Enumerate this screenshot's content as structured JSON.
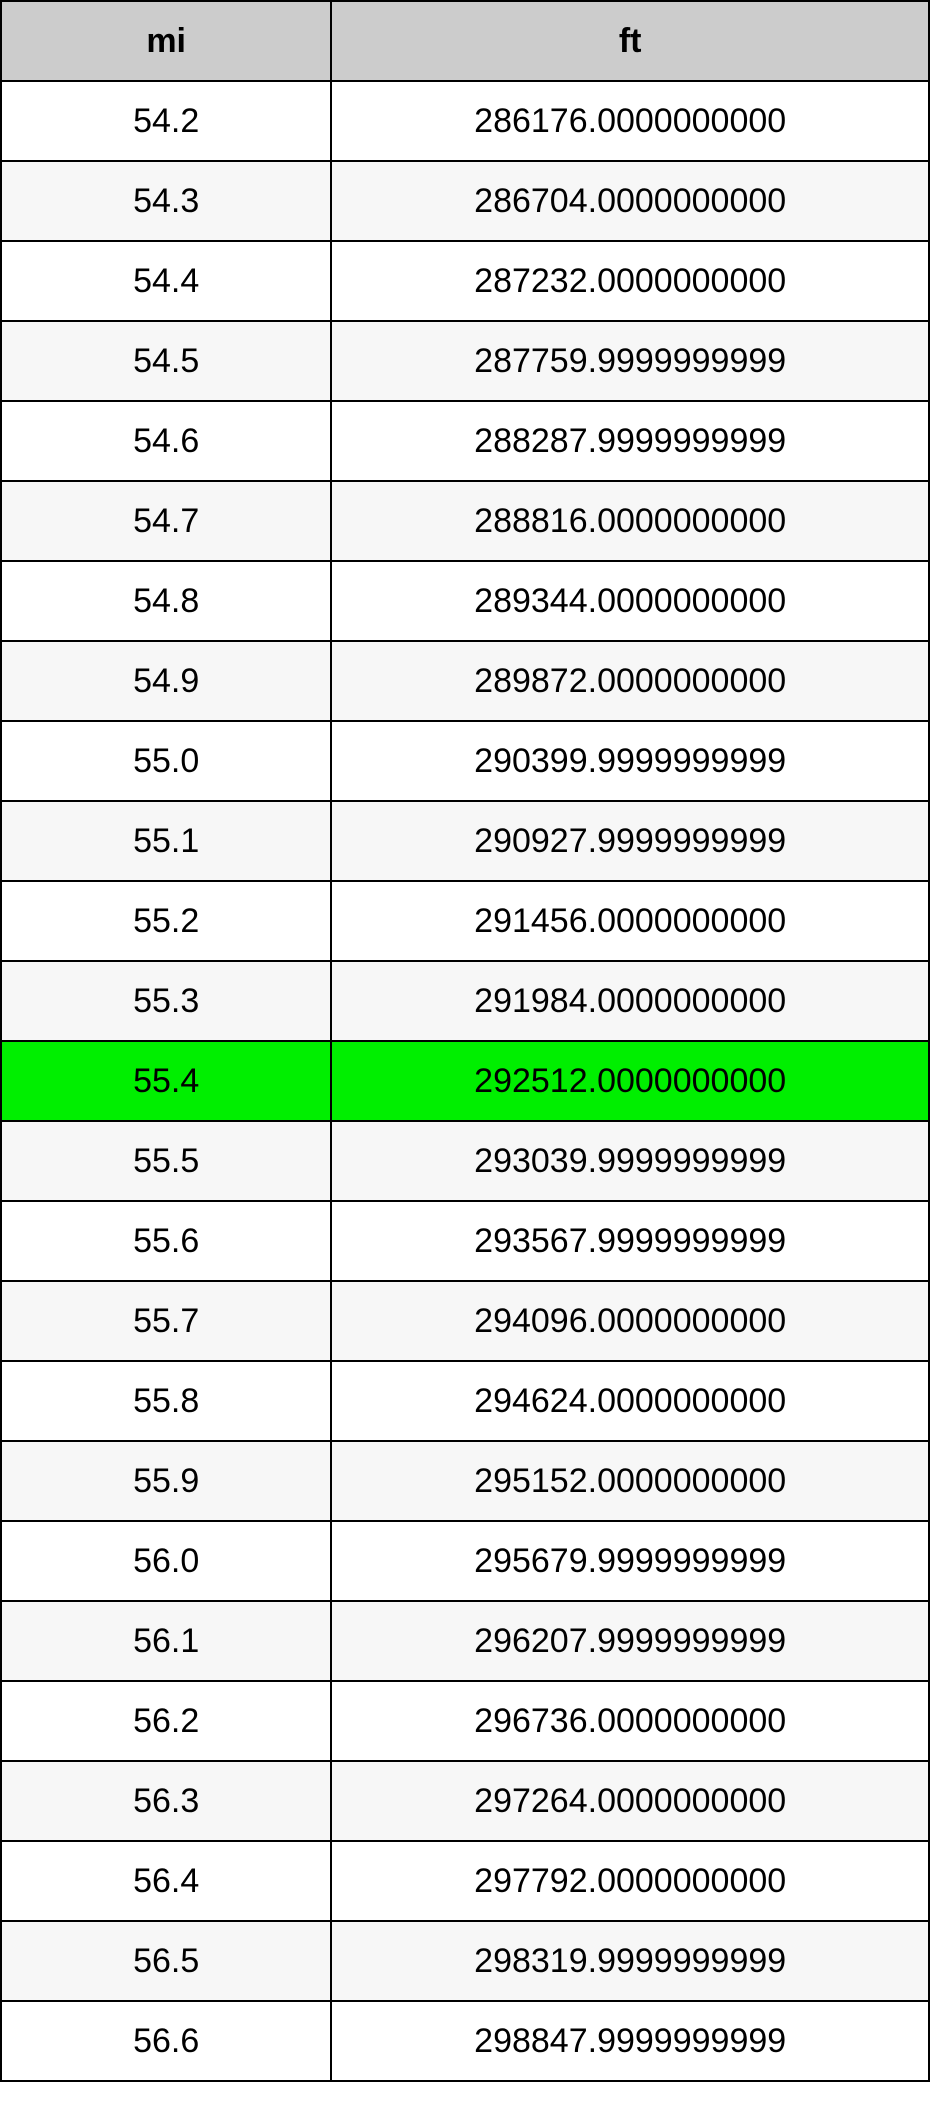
{
  "table": {
    "type": "table",
    "header_bg": "#cccccc",
    "row_bg_odd": "#ffffff",
    "row_bg_even": "#f7f7f7",
    "highlight_bg": "#00ef00",
    "border_color": "#000000",
    "text_color": "#000000",
    "header_fontsize": 34,
    "cell_fontsize": 34,
    "header_fontweight": "bold",
    "cell_fontweight": "normal",
    "col_widths_pct": [
      35.6,
      64.4
    ],
    "columns": [
      "mi",
      "ft"
    ],
    "highlight_index": 12,
    "rows": [
      [
        "54.2",
        "286176.0000000000"
      ],
      [
        "54.3",
        "286704.0000000000"
      ],
      [
        "54.4",
        "287232.0000000000"
      ],
      [
        "54.5",
        "287759.9999999999"
      ],
      [
        "54.6",
        "288287.9999999999"
      ],
      [
        "54.7",
        "288816.0000000000"
      ],
      [
        "54.8",
        "289344.0000000000"
      ],
      [
        "54.9",
        "289872.0000000000"
      ],
      [
        "55.0",
        "290399.9999999999"
      ],
      [
        "55.1",
        "290927.9999999999"
      ],
      [
        "55.2",
        "291456.0000000000"
      ],
      [
        "55.3",
        "291984.0000000000"
      ],
      [
        "55.4",
        "292512.0000000000"
      ],
      [
        "55.5",
        "293039.9999999999"
      ],
      [
        "55.6",
        "293567.9999999999"
      ],
      [
        "55.7",
        "294096.0000000000"
      ],
      [
        "55.8",
        "294624.0000000000"
      ],
      [
        "55.9",
        "295152.0000000000"
      ],
      [
        "56.0",
        "295679.9999999999"
      ],
      [
        "56.1",
        "296207.9999999999"
      ],
      [
        "56.2",
        "296736.0000000000"
      ],
      [
        "56.3",
        "297264.0000000000"
      ],
      [
        "56.4",
        "297792.0000000000"
      ],
      [
        "56.5",
        "298319.9999999999"
      ],
      [
        "56.6",
        "298847.9999999999"
      ]
    ]
  }
}
